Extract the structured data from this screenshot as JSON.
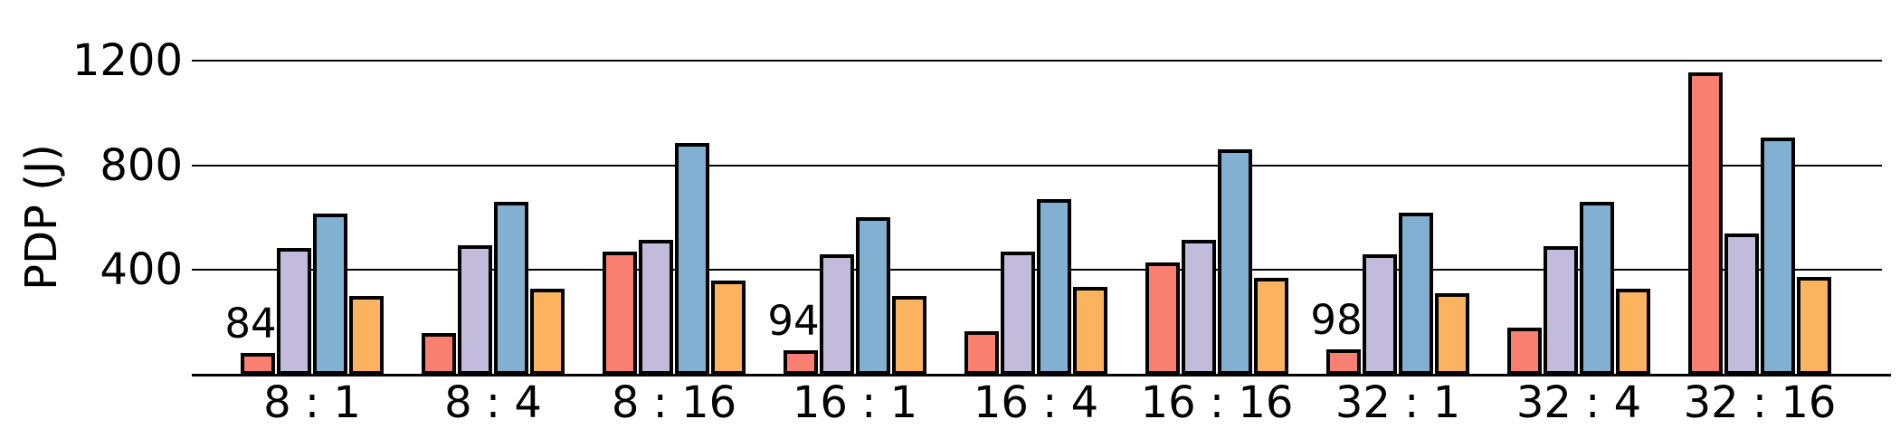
{
  "chart_data": {
    "type": "bar",
    "title": "",
    "xlabel": "",
    "ylabel": "PDP (J)",
    "categories": [
      "8 : 1",
      "8 : 4",
      "8 : 16",
      "16 : 1",
      "16 : 4",
      "16 : 16",
      "32 : 1",
      "32 : 4",
      "32 : 16"
    ],
    "y_ticks": [
      400,
      800,
      1200
    ],
    "ylim": [
      0,
      1430
    ],
    "grid": "horizontal-only",
    "legend": "none",
    "bar_edge_color": "#000000",
    "background_color": "#ffffff",
    "series": [
      {
        "name": "red",
        "color": "#F98070",
        "values": [
          84,
          160,
          470,
          94,
          165,
          430,
          98,
          180,
          1155
        ]
      },
      {
        "name": "lavender",
        "color": "#C2BBDC",
        "values": [
          485,
          495,
          515,
          460,
          470,
          515,
          460,
          490,
          540
        ]
      },
      {
        "name": "blue",
        "color": "#82B0D3",
        "values": [
          615,
          660,
          885,
          600,
          670,
          860,
          620,
          660,
          905
        ]
      },
      {
        "name": "orange",
        "color": "#FBB360",
        "values": [
          300,
          330,
          360,
          300,
          335,
          370,
          310,
          330,
          375
        ]
      }
    ],
    "annotations": [
      {
        "category": "8 : 1",
        "series": "red",
        "text": "84"
      },
      {
        "category": "16 : 1",
        "series": "red",
        "text": "94"
      },
      {
        "category": "32 : 1",
        "series": "red",
        "text": "98"
      }
    ]
  }
}
